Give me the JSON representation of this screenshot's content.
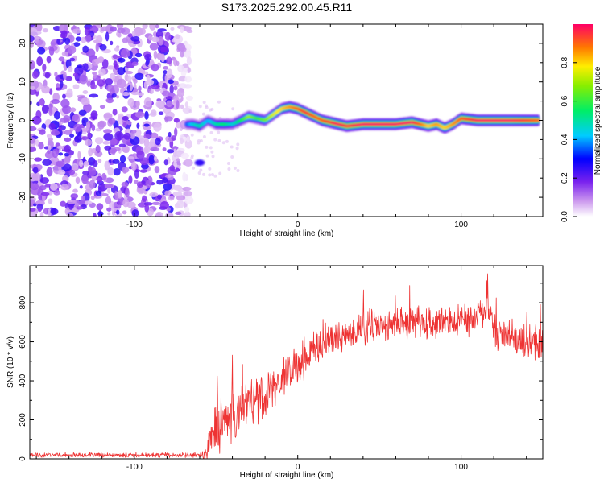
{
  "title": "S173.2025.292.00.45.R11",
  "colors": {
    "snr_line": "#ee3333",
    "frame": "#000000"
  },
  "chart_data": [
    {
      "type": "heatmap",
      "title": "S173.2025.292.00.45.R11",
      "xlabel": "Height of straight line (km)",
      "ylabel": "Frequency (Hz)",
      "xlim": [
        -164,
        150
      ],
      "ylim": [
        -25,
        25
      ],
      "xticks": [
        -100,
        0,
        100
      ],
      "yticks": [
        -20,
        -10,
        0,
        10,
        20
      ],
      "noise_region_x": [
        -164,
        -66
      ],
      "ridge": {
        "x": [
          -68,
          -64,
          -60,
          -55,
          -50,
          -45,
          -40,
          -35,
          -30,
          -25,
          -20,
          -15,
          -10,
          -5,
          0,
          5,
          10,
          15,
          20,
          25,
          30,
          40,
          50,
          60,
          70,
          75,
          80,
          85,
          90,
          95,
          100,
          110,
          120,
          130,
          140,
          148
        ],
        "freq": [
          -1,
          -1,
          -1.5,
          0,
          -1,
          -1,
          -1,
          0,
          1,
          0.5,
          0,
          1.5,
          3,
          3.5,
          3,
          2,
          1,
          0,
          -0.5,
          -1,
          -1.5,
          -1,
          -1,
          -1,
          -0.5,
          -1,
          -1.5,
          -1,
          -2,
          -1,
          0.5,
          0,
          0,
          0,
          0,
          0
        ],
        "amp": [
          0.35,
          0.45,
          0.5,
          0.4,
          0.5,
          0.55,
          0.45,
          0.55,
          0.7,
          0.6,
          0.65,
          0.75,
          0.8,
          0.85,
          0.9,
          0.95,
          0.9,
          0.9,
          0.95,
          1,
          0.95,
          1,
          1,
          1,
          1,
          0.9,
          0.8,
          0.85,
          0.8,
          0.85,
          0.9,
          1,
          1,
          1,
          0.95,
          0.9
        ]
      },
      "colorbar": {
        "label": "Normalized spectral amplitude",
        "ticks": [
          0.0,
          0.2,
          0.4,
          0.6,
          0.8
        ],
        "range": [
          0,
          1
        ]
      }
    },
    {
      "type": "line",
      "xlabel": "Height of straight line (km)",
      "ylabel": "SNR (10 * v/v)",
      "xlim": [
        -164,
        150
      ],
      "ylim": [
        0,
        990
      ],
      "xticks": [
        -100,
        0,
        100
      ],
      "yticks": [
        0,
        200,
        400,
        600,
        800
      ],
      "envelope": {
        "x": [
          -164,
          -60,
          -56,
          -50,
          -40,
          -30,
          -20,
          -10,
          0,
          10,
          20,
          30,
          40,
          50,
          60,
          70,
          80,
          90,
          100,
          110,
          115,
          117,
          120,
          130,
          140,
          150
        ],
        "mean": [
          20,
          20,
          30,
          150,
          230,
          280,
          330,
          400,
          480,
          560,
          620,
          650,
          670,
          680,
          690,
          700,
          700,
          700,
          710,
          720,
          760,
          780,
          650,
          620,
          600,
          600
        ],
        "spread": [
          15,
          15,
          60,
          160,
          170,
          160,
          150,
          140,
          130,
          120,
          110,
          100,
          100,
          100,
          100,
          100,
          100,
          100,
          100,
          100,
          120,
          120,
          110,
          110,
          110,
          110
        ]
      }
    }
  ]
}
